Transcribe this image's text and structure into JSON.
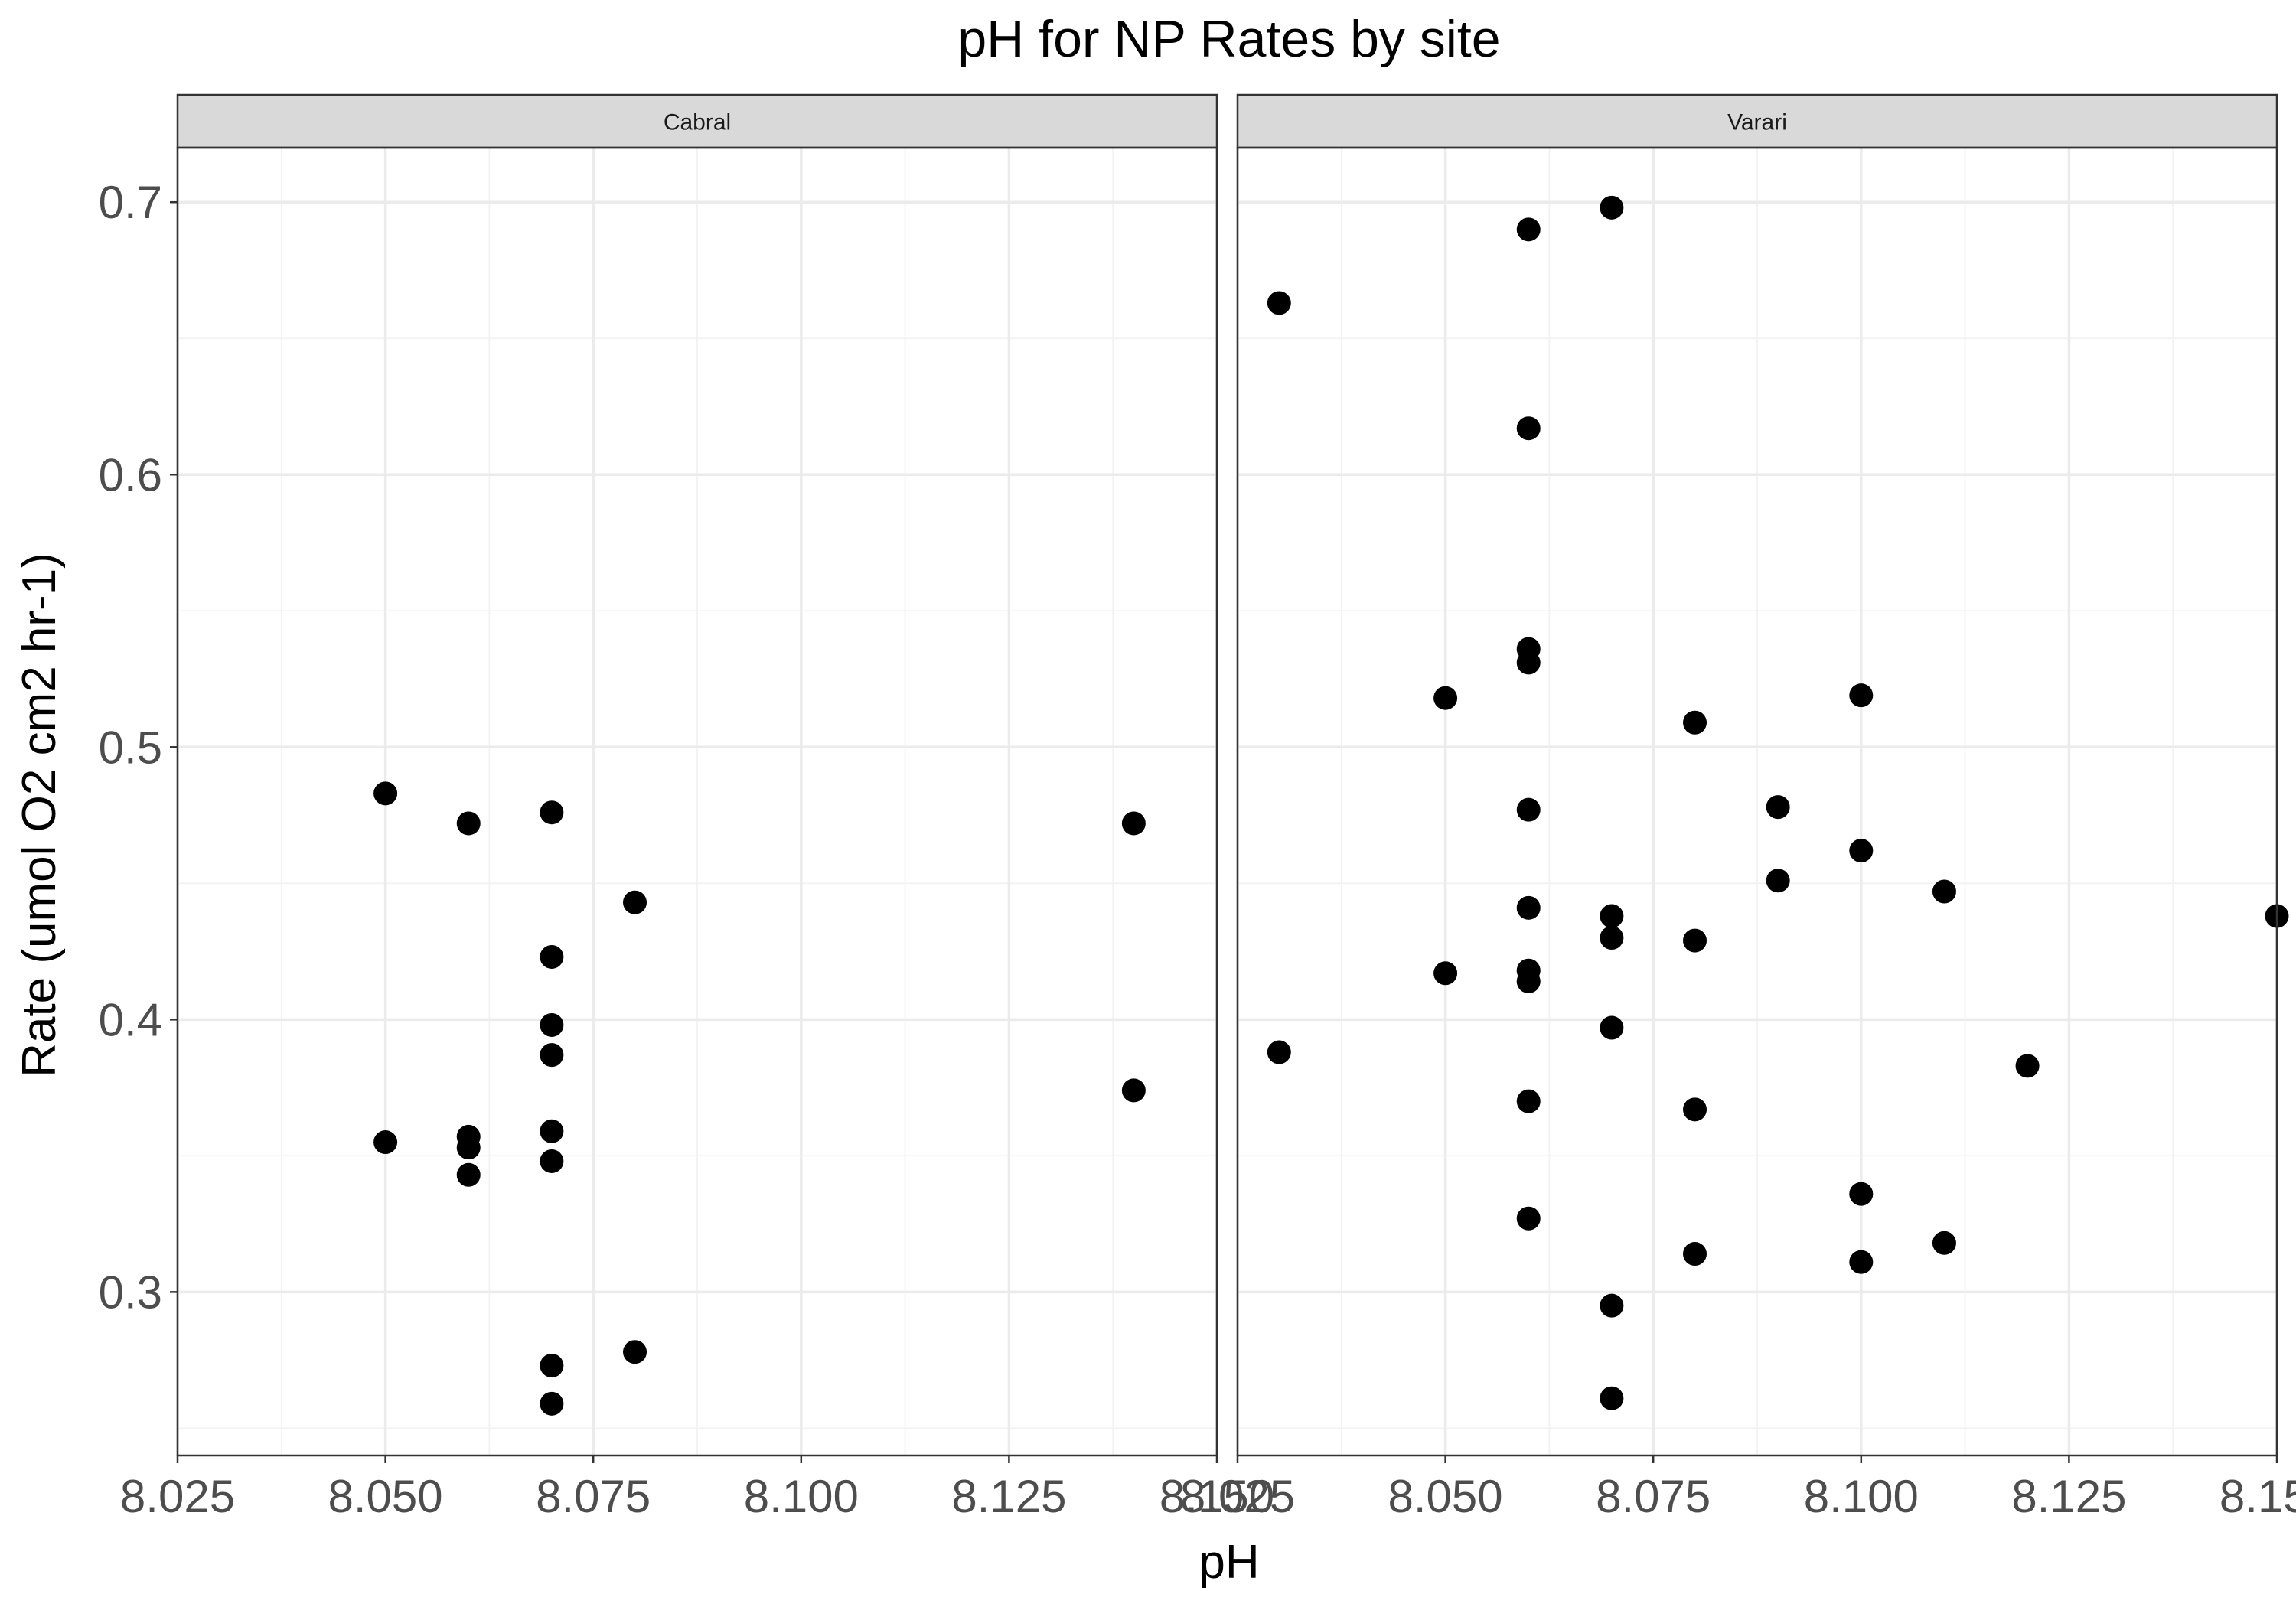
{
  "chart_data": {
    "type": "scatter",
    "title": "pH for NP Rates by site",
    "xlabel": "pH",
    "ylabel": "Rate (umol O2 cm2 hr-1)",
    "xlim": [
      8.025,
      8.15
    ],
    "ylim": [
      0.24,
      0.72
    ],
    "x_ticks": [
      8.025,
      8.05,
      8.075,
      8.1,
      8.125,
      8.15
    ],
    "x_tick_labels": [
      "8.025",
      "8.050",
      "8.075",
      "8.100",
      "8.125",
      "8.150"
    ],
    "y_ticks": [
      0.3,
      0.4,
      0.5,
      0.6,
      0.7
    ],
    "y_tick_labels": [
      "0.3",
      "0.4",
      "0.5",
      "0.6",
      "0.7"
    ],
    "grid": true,
    "facets": [
      {
        "label": "Cabral",
        "points": [
          {
            "x": 8.05,
            "y": 0.483
          },
          {
            "x": 8.05,
            "y": 0.355
          },
          {
            "x": 8.06,
            "y": 0.472
          },
          {
            "x": 8.06,
            "y": 0.357
          },
          {
            "x": 8.06,
            "y": 0.353
          },
          {
            "x": 8.06,
            "y": 0.343
          },
          {
            "x": 8.07,
            "y": 0.476
          },
          {
            "x": 8.07,
            "y": 0.423
          },
          {
            "x": 8.07,
            "y": 0.398
          },
          {
            "x": 8.07,
            "y": 0.387
          },
          {
            "x": 8.07,
            "y": 0.359
          },
          {
            "x": 8.07,
            "y": 0.348
          },
          {
            "x": 8.07,
            "y": 0.273
          },
          {
            "x": 8.07,
            "y": 0.259
          },
          {
            "x": 8.08,
            "y": 0.443
          },
          {
            "x": 8.08,
            "y": 0.278
          },
          {
            "x": 8.14,
            "y": 0.472
          },
          {
            "x": 8.14,
            "y": 0.374
          }
        ]
      },
      {
        "label": "Varari",
        "points": [
          {
            "x": 8.03,
            "y": 0.663
          },
          {
            "x": 8.03,
            "y": 0.388
          },
          {
            "x": 8.05,
            "y": 0.518
          },
          {
            "x": 8.05,
            "y": 0.417
          },
          {
            "x": 8.06,
            "y": 0.69
          },
          {
            "x": 8.06,
            "y": 0.617
          },
          {
            "x": 8.06,
            "y": 0.536
          },
          {
            "x": 8.06,
            "y": 0.531
          },
          {
            "x": 8.06,
            "y": 0.477
          },
          {
            "x": 8.06,
            "y": 0.441
          },
          {
            "x": 8.06,
            "y": 0.418
          },
          {
            "x": 8.06,
            "y": 0.414
          },
          {
            "x": 8.06,
            "y": 0.37
          },
          {
            "x": 8.06,
            "y": 0.327
          },
          {
            "x": 8.07,
            "y": 0.698
          },
          {
            "x": 8.07,
            "y": 0.438
          },
          {
            "x": 8.07,
            "y": 0.43
          },
          {
            "x": 8.07,
            "y": 0.397
          },
          {
            "x": 8.07,
            "y": 0.295
          },
          {
            "x": 8.07,
            "y": 0.261
          },
          {
            "x": 8.08,
            "y": 0.509
          },
          {
            "x": 8.08,
            "y": 0.429
          },
          {
            "x": 8.08,
            "y": 0.367
          },
          {
            "x": 8.08,
            "y": 0.314
          },
          {
            "x": 8.09,
            "y": 0.478
          },
          {
            "x": 8.09,
            "y": 0.451
          },
          {
            "x": 8.1,
            "y": 0.519
          },
          {
            "x": 8.1,
            "y": 0.462
          },
          {
            "x": 8.1,
            "y": 0.336
          },
          {
            "x": 8.1,
            "y": 0.311
          },
          {
            "x": 8.11,
            "y": 0.447
          },
          {
            "x": 8.11,
            "y": 0.318
          },
          {
            "x": 8.12,
            "y": 0.383
          },
          {
            "x": 8.15,
            "y": 0.438
          }
        ]
      }
    ]
  }
}
